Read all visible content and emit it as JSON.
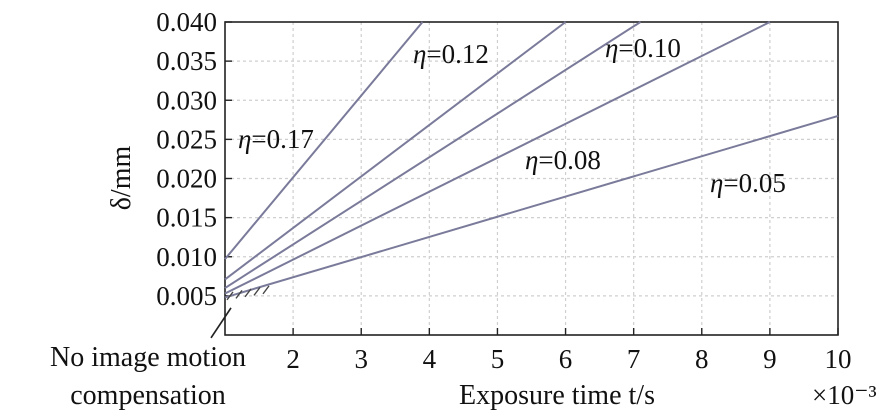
{
  "chart_data": {
    "type": "line",
    "title": "",
    "xlabel": "Exposure time t/s",
    "ylabel": "δ/mm",
    "x_multiplier_label": "×10⁻³",
    "xlim": [
      1,
      10
    ],
    "ylim": [
      0,
      0.04
    ],
    "xticks": [
      2,
      3,
      4,
      5,
      6,
      7,
      8,
      9,
      10
    ],
    "yticks": [
      0.005,
      0.01,
      0.015,
      0.02,
      0.025,
      0.03,
      0.035,
      0.04
    ],
    "ytick_labels": [
      "0.005",
      "0.010",
      "0.015",
      "0.020",
      "0.025",
      "0.030",
      "0.035",
      "0.040"
    ],
    "grid": true,
    "series": [
      {
        "name": "η=0.17",
        "x": [
          1,
          3.9
        ],
        "y": [
          0.0097,
          0.04
        ]
      },
      {
        "name": "η=0.12",
        "x": [
          1,
          6.0
        ],
        "y": [
          0.0071,
          0.04
        ]
      },
      {
        "name": "η=0.10",
        "x": [
          1,
          7.1
        ],
        "y": [
          0.006,
          0.04
        ]
      },
      {
        "name": "η=0.08",
        "x": [
          1,
          9.0
        ],
        "y": [
          0.0053,
          0.04
        ]
      },
      {
        "name": "η=0.05",
        "x": [
          1,
          10
        ],
        "y": [
          0.0048,
          0.028
        ]
      }
    ],
    "annotation": {
      "line1": "No image motion",
      "line2": "compensation",
      "x": 1,
      "y": 0.005
    },
    "line_color": "#7a7a9a"
  }
}
